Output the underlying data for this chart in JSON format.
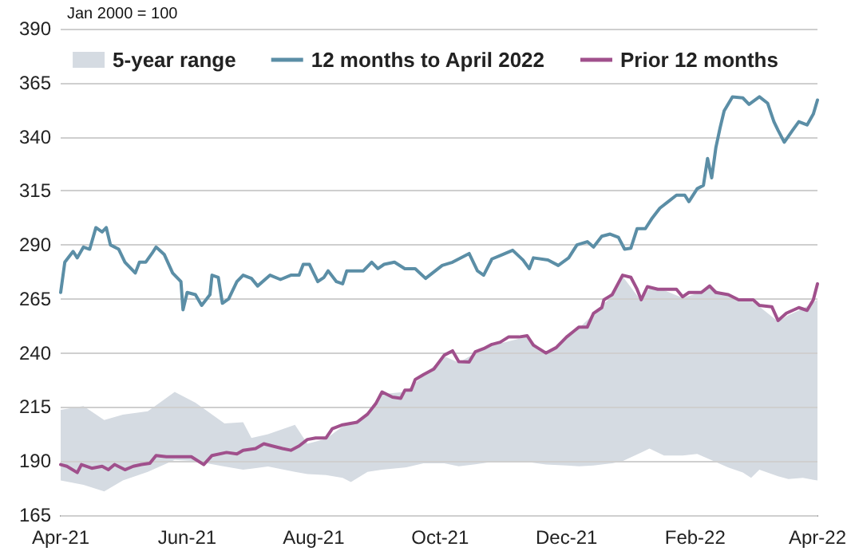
{
  "chart_data": {
    "type": "line",
    "annotations": [
      "Jan 2000 = 100"
    ],
    "xlim": [
      "2021-04-01",
      "2022-04-01"
    ],
    "xticks": [
      {
        "value": "2021-04-01",
        "label": "Apr-21"
      },
      {
        "value": "2021-06-01",
        "label": "Jun-21"
      },
      {
        "value": "2021-08-01",
        "label": "Aug-21"
      },
      {
        "value": "2021-10-01",
        "label": "Oct-21"
      },
      {
        "value": "2021-12-01",
        "label": "Dec-21"
      },
      {
        "value": "2022-02-01",
        "label": "Feb-22"
      },
      {
        "value": "2022-04-01",
        "label": "Apr-22"
      }
    ],
    "ylim": [
      165,
      390
    ],
    "yticks": [
      165,
      190,
      215,
      240,
      265,
      290,
      315,
      340,
      365,
      390
    ],
    "grid": "y",
    "legend": "top",
    "series": [
      {
        "name": "5-year range",
        "type": "area",
        "color": "#d5dbe2",
        "x": [
          "2021-04-01",
          "2021-04-12",
          "2021-04-22",
          "2021-05-01",
          "2021-05-13",
          "2021-05-26",
          "2021-06-05",
          "2021-06-19",
          "2021-06-28",
          "2021-07-02",
          "2021-07-10",
          "2021-07-23",
          "2021-07-29",
          "2021-08-07",
          "2021-08-15",
          "2021-08-19",
          "2021-08-27",
          "2021-09-03",
          "2021-09-14",
          "2021-09-23",
          "2021-10-03",
          "2021-10-10",
          "2021-10-18",
          "2021-10-26",
          "2021-11-12",
          "2021-11-21",
          "2021-12-01",
          "2021-12-07",
          "2021-12-14",
          "2021-12-23",
          "2021-12-28",
          "2022-01-06",
          "2022-01-10",
          "2022-01-17",
          "2022-01-26",
          "2022-02-02",
          "2022-02-08",
          "2022-02-17",
          "2022-02-24",
          "2022-02-28",
          "2022-03-04",
          "2022-03-13",
          "2022-03-18",
          "2022-03-25",
          "2022-04-01"
        ],
        "values": [
          213.7,
          215.4,
          209,
          211.5,
          213,
          222,
          217,
          207.4,
          208,
          200.7,
          202.4,
          206.8,
          198,
          200.3,
          206,
          207.5,
          211,
          221,
          222,
          229.5,
          238.5,
          235.5,
          240,
          243.5,
          247.5,
          239.5,
          247,
          251.5,
          258,
          266.5,
          275.5,
          264,
          270,
          269,
          265.5,
          267.5,
          270.5,
          266.5,
          264,
          264,
          261.5,
          254.5,
          257.5,
          260.5,
          264.6
        ]
      },
      {
        "type": "area",
        "color": "#ffffff",
        "x": [
          "2021-04-01",
          "2021-04-12",
          "2021-04-22",
          "2021-05-01",
          "2021-05-13",
          "2021-05-26",
          "2021-06-05",
          "2021-06-19",
          "2021-06-28",
          "2021-07-02",
          "2021-07-10",
          "2021-07-23",
          "2021-07-29",
          "2021-08-07",
          "2021-08-15",
          "2021-08-19",
          "2021-08-27",
          "2021-09-03",
          "2021-09-14",
          "2021-09-23",
          "2021-10-03",
          "2021-10-10",
          "2021-10-18",
          "2021-10-26",
          "2021-11-12",
          "2021-11-21",
          "2021-12-01",
          "2021-12-07",
          "2021-12-14",
          "2021-12-23",
          "2021-12-28",
          "2022-01-06",
          "2022-01-10",
          "2022-01-17",
          "2022-01-26",
          "2022-02-02",
          "2022-02-08",
          "2022-02-17",
          "2022-02-24",
          "2022-02-28",
          "2022-03-04",
          "2022-03-13",
          "2022-03-18",
          "2022-03-25",
          "2022-04-01"
        ],
        "values": [
          181,
          179,
          176,
          181,
          185,
          190.5,
          190,
          187.5,
          186,
          186.5,
          187.5,
          185,
          184,
          183.5,
          182.2,
          180.3,
          185,
          186,
          187,
          189,
          189,
          187.6,
          188.5,
          189.6,
          189.6,
          188.4,
          188,
          187.6,
          188,
          189,
          190,
          194,
          195.8,
          192.6,
          192.6,
          193.3,
          190.8,
          187,
          184.7,
          182.2,
          186,
          183,
          181.7,
          182.2,
          181
        ]
      },
      {
        "name": "12 months to April 2022",
        "color": "#5b8ea6",
        "x": [
          "2021-04-01",
          "2021-04-03",
          "2021-04-07",
          "2021-04-09",
          "2021-04-12",
          "2021-04-15",
          "2021-04-18",
          "2021-04-21",
          "2021-04-23",
          "2021-04-25",
          "2021-04-29",
          "2021-05-02",
          "2021-05-07",
          "2021-05-09",
          "2021-05-12",
          "2021-05-15",
          "2021-05-17",
          "2021-05-21",
          "2021-05-25",
          "2021-05-29",
          "2021-05-30",
          "2021-06-01",
          "2021-06-05",
          "2021-06-08",
          "2021-06-12",
          "2021-06-13",
          "2021-06-16",
          "2021-06-18",
          "2021-06-21",
          "2021-06-25",
          "2021-06-28",
          "2021-07-02",
          "2021-07-05",
          "2021-07-11",
          "2021-07-16",
          "2021-07-21",
          "2021-07-25",
          "2021-07-27",
          "2021-07-30",
          "2021-08-03",
          "2021-08-06",
          "2021-08-08",
          "2021-08-12",
          "2021-08-15",
          "2021-08-17",
          "2021-08-21",
          "2021-08-25",
          "2021-08-29",
          "2021-09-01",
          "2021-09-04",
          "2021-09-09",
          "2021-09-14",
          "2021-09-19",
          "2021-09-24",
          "2021-10-02",
          "2021-10-07",
          "2021-10-15",
          "2021-10-19",
          "2021-10-22",
          "2021-10-26",
          "2021-10-31",
          "2021-11-05",
          "2021-11-10",
          "2021-11-13",
          "2021-11-15",
          "2021-11-22",
          "2021-11-27",
          "2021-12-02",
          "2021-12-06",
          "2021-12-11",
          "2021-12-14",
          "2021-12-18",
          "2021-12-22",
          "2021-12-26",
          "2021-12-29",
          "2022-01-01",
          "2022-01-04",
          "2022-01-08",
          "2022-01-11",
          "2022-01-15",
          "2022-01-19",
          "2022-01-23",
          "2022-01-27",
          "2022-01-29",
          "2022-02-02",
          "2022-02-05",
          "2022-02-07",
          "2022-02-09",
          "2022-02-11",
          "2022-02-13",
          "2022-02-15",
          "2022-02-19",
          "2022-02-24",
          "2022-02-27",
          "2022-03-04",
          "2022-03-08",
          "2022-03-11",
          "2022-03-13",
          "2022-03-16",
          "2022-03-20",
          "2022-03-23",
          "2022-03-27",
          "2022-03-30",
          "2022-04-01"
        ],
        "values": [
          268,
          282,
          287,
          284,
          289,
          288,
          298,
          296,
          298,
          290,
          288,
          282,
          277,
          282,
          282,
          286,
          289,
          285.5,
          277,
          273,
          260,
          268,
          267,
          262,
          267,
          276,
          275,
          263,
          265,
          273,
          276,
          274.5,
          271,
          276,
          274,
          276,
          276,
          281,
          281,
          273,
          275,
          278,
          273,
          272,
          278,
          278,
          278,
          282,
          279,
          281,
          282,
          279,
          279,
          274.5,
          280.5,
          282,
          286,
          278,
          276,
          283.5,
          285.5,
          287.5,
          283,
          279,
          284,
          283,
          280.5,
          284,
          290,
          291.5,
          289,
          294,
          295,
          293.5,
          288,
          288.5,
          297.5,
          297.5,
          302,
          307,
          310,
          313,
          313,
          310,
          316,
          317.5,
          330,
          321,
          335,
          344,
          352,
          358.5,
          358,
          355,
          358.5,
          355.5,
          347,
          343,
          337.5,
          343,
          347,
          345.5,
          350.5,
          357
        ]
      },
      {
        "name": "Prior 12 months",
        "color": "#a0508c",
        "x": [
          "2021-04-01",
          "2021-04-04",
          "2021-04-09",
          "2021-04-11",
          "2021-04-16",
          "2021-04-21",
          "2021-04-24",
          "2021-04-27",
          "2021-05-02",
          "2021-05-06",
          "2021-05-10",
          "2021-05-14",
          "2021-05-17",
          "2021-05-22",
          "2021-05-27",
          "2021-06-03",
          "2021-06-09",
          "2021-06-13",
          "2021-06-20",
          "2021-06-25",
          "2021-06-28",
          "2021-07-04",
          "2021-07-08",
          "2021-07-12",
          "2021-07-17",
          "2021-07-21",
          "2021-07-25",
          "2021-07-29",
          "2021-08-02",
          "2021-08-07",
          "2021-08-10",
          "2021-08-15",
          "2021-08-22",
          "2021-08-27",
          "2021-08-31",
          "2021-09-03",
          "2021-09-08",
          "2021-09-12",
          "2021-09-14",
          "2021-09-17",
          "2021-09-19",
          "2021-09-23",
          "2021-09-28",
          "2021-10-03",
          "2021-10-07",
          "2021-10-10",
          "2021-10-15",
          "2021-10-18",
          "2021-10-22",
          "2021-10-26",
          "2021-10-30",
          "2021-11-03",
          "2021-11-08",
          "2021-11-12",
          "2021-11-15",
          "2021-11-21",
          "2021-11-26",
          "2021-12-01",
          "2021-12-05",
          "2021-12-07",
          "2021-12-11",
          "2021-12-14",
          "2021-12-18",
          "2021-12-19",
          "2021-12-23",
          "2021-12-28",
          "2022-01-01",
          "2022-01-04",
          "2022-01-06",
          "2022-01-09",
          "2022-01-14",
          "2022-01-19",
          "2022-01-23",
          "2022-01-26",
          "2022-01-29",
          "2022-02-04",
          "2022-02-08",
          "2022-02-11",
          "2022-02-17",
          "2022-02-22",
          "2022-03-01",
          "2022-03-04",
          "2022-03-10",
          "2022-03-13",
          "2022-03-17",
          "2022-03-23",
          "2022-03-27",
          "2022-03-30",
          "2022-04-01"
        ],
        "values": [
          188.4,
          187.6,
          184.7,
          188.4,
          186.7,
          187.6,
          186,
          188.4,
          186,
          187.6,
          188.4,
          189,
          192.6,
          192,
          192,
          192,
          188.4,
          192.6,
          194,
          193.3,
          195,
          195.8,
          198,
          197,
          195.8,
          195,
          197,
          200,
          200.7,
          200.7,
          205,
          206.8,
          208,
          211.7,
          216.6,
          222,
          219.6,
          219,
          222.8,
          222.8,
          227.7,
          230,
          232.6,
          239,
          241,
          236,
          235.8,
          240.6,
          242,
          244,
          245,
          247.4,
          247.4,
          248,
          243.6,
          240,
          242.5,
          247.4,
          250.5,
          252,
          252,
          258.4,
          261,
          264.6,
          267,
          276,
          275,
          269.5,
          264.6,
          270.7,
          269.5,
          269.5,
          269.5,
          266,
          268,
          268,
          271,
          268,
          267,
          264.6,
          264.6,
          262,
          261.4,
          255,
          258.4,
          261,
          259.7,
          264.6,
          272
        ]
      }
    ]
  }
}
